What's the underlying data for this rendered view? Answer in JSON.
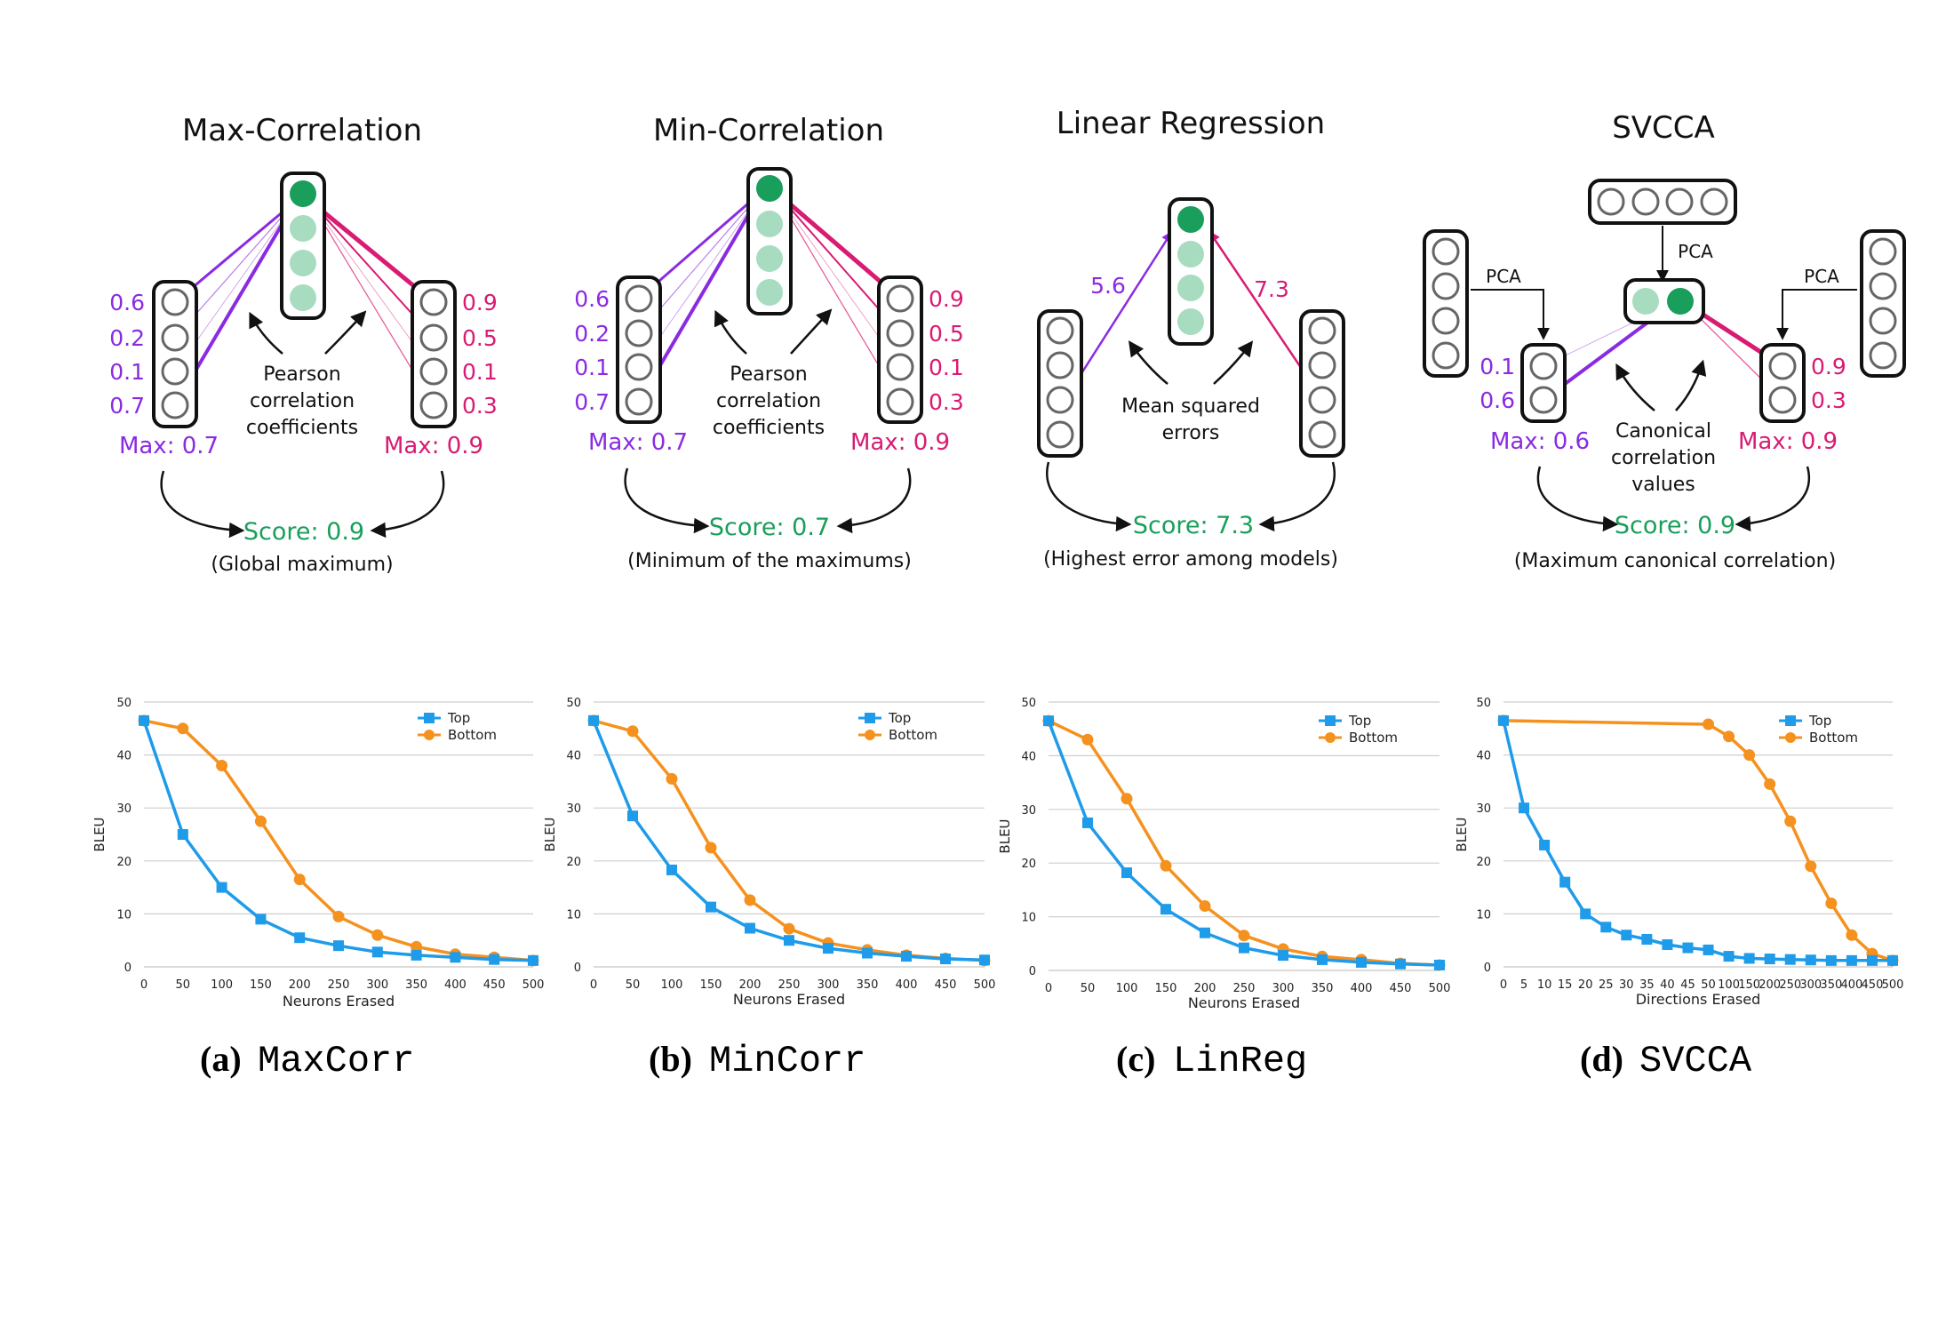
{
  "colors": {
    "purple": "#8a2be2",
    "pink": "#d81b73",
    "green": "#1a9e5b",
    "green_light": "#a8dcc0",
    "blue": "#1e9be9",
    "orange": "#f5911e",
    "grid": "#cfcfcf",
    "ink": "#111111"
  },
  "diagrams": {
    "maxcorr": {
      "title": "Max-Correlation",
      "left_values": [
        "0.6",
        "0.2",
        "0.1",
        "0.7"
      ],
      "right_values": [
        "0.9",
        "0.5",
        "0.1",
        "0.3"
      ],
      "middle_label": [
        "Pearson",
        "correlation",
        "coefficients"
      ],
      "left_max": "Max: 0.7",
      "right_max": "Max: 0.9",
      "score": "Score: 0.9",
      "note": "(Global maximum)"
    },
    "mincorr": {
      "title": "Min-Correlation",
      "left_values": [
        "0.6",
        "0.2",
        "0.1",
        "0.7"
      ],
      "right_values": [
        "0.9",
        "0.5",
        "0.1",
        "0.3"
      ],
      "middle_label": [
        "Pearson",
        "correlation",
        "coefficients"
      ],
      "left_max": "Max: 0.7",
      "right_max": "Max: 0.9",
      "score": "Score: 0.7",
      "note": "(Minimum of the maximums)"
    },
    "linreg": {
      "title": "Linear Regression",
      "left_error": "5.6",
      "right_error": "7.3",
      "middle_label": [
        "Mean squared",
        "errors"
      ],
      "score": "Score: 7.3",
      "note": "(Highest error among models)"
    },
    "svcca": {
      "title": "SVCCA",
      "pca_label": "PCA",
      "left_values": [
        "0.1",
        "0.6"
      ],
      "right_values": [
        "0.9",
        "0.3"
      ],
      "middle_label": [
        "Canonical",
        "correlation",
        "values"
      ],
      "left_max": "Max: 0.6",
      "right_max": "Max: 0.9",
      "score": "Score: 0.9",
      "note": "(Maximum canonical correlation)"
    }
  },
  "captions": [
    {
      "label": "(a)",
      "code": "MaxCorr"
    },
    {
      "label": "(b)",
      "code": "MinCorr"
    },
    {
      "label": "(c)",
      "code": "LinReg"
    },
    {
      "label": "(d)",
      "code": "SVCCA"
    }
  ],
  "chart_data": [
    {
      "type": "line",
      "xlabel": "Neurons Erased",
      "ylabel": "BLEU",
      "ylim": [
        0,
        50
      ],
      "yticks": [
        0,
        10,
        20,
        30,
        40,
        50
      ],
      "x": [
        "0",
        "50",
        "100",
        "150",
        "200",
        "250",
        "300",
        "350",
        "400",
        "450",
        "500"
      ],
      "grid": true,
      "legend_position": "top-right",
      "series": [
        {
          "name": "Top",
          "marker": "square",
          "values": [
            46.5,
            25,
            15,
            9,
            5.5,
            4,
            2.8,
            2.2,
            1.8,
            1.4,
            1.2
          ]
        },
        {
          "name": "Bottom",
          "marker": "circle",
          "values": [
            46.5,
            45,
            38,
            27.5,
            16.5,
            9.5,
            6,
            3.8,
            2.4,
            1.8,
            1.2
          ]
        }
      ]
    },
    {
      "type": "line",
      "xlabel": "Neurons Erased",
      "ylabel": "BLEU",
      "ylim": [
        0,
        50
      ],
      "yticks": [
        0,
        10,
        20,
        30,
        40,
        50
      ],
      "x": [
        "0",
        "50",
        "100",
        "150",
        "200",
        "250",
        "300",
        "350",
        "400",
        "450",
        "500"
      ],
      "grid": true,
      "legend_position": "top-right",
      "series": [
        {
          "name": "Top",
          "marker": "square",
          "values": [
            46.5,
            28.5,
            18.3,
            11.3,
            7.3,
            5,
            3.5,
            2.6,
            2,
            1.5,
            1.3
          ]
        },
        {
          "name": "Bottom",
          "marker": "circle",
          "values": [
            46.5,
            44.5,
            35.5,
            22.5,
            12.6,
            7.2,
            4.5,
            3.2,
            2.2,
            1.6,
            1.2
          ]
        }
      ]
    },
    {
      "type": "line",
      "xlabel": "Neurons Erased",
      "ylabel": "BLEU",
      "ylim": [
        0,
        50
      ],
      "yticks": [
        0,
        10,
        20,
        30,
        40,
        50
      ],
      "x": [
        "0",
        "50",
        "100",
        "150",
        "200",
        "250",
        "300",
        "350",
        "400",
        "450",
        "500"
      ],
      "grid": true,
      "legend_position": "top-right",
      "series": [
        {
          "name": "Top",
          "marker": "square",
          "values": [
            46.5,
            27.5,
            18.2,
            11.4,
            7,
            4.2,
            2.8,
            2,
            1.5,
            1.2,
            1
          ]
        },
        {
          "name": "Bottom",
          "marker": "circle",
          "values": [
            46.5,
            43,
            32,
            19.5,
            12,
            6.5,
            4,
            2.6,
            2,
            1.3,
            1
          ]
        }
      ]
    },
    {
      "type": "line",
      "xlabel": "Directions Erased",
      "ylabel": "BLEU",
      "ylim": [
        0,
        50
      ],
      "yticks": [
        0,
        10,
        20,
        30,
        40,
        50
      ],
      "x": [
        "0",
        "5",
        "10",
        "15",
        "20",
        "25",
        "30",
        "35",
        "40",
        "45",
        "50",
        "100",
        "150",
        "200",
        "250",
        "300",
        "350",
        "400",
        "450",
        "500"
      ],
      "grid": true,
      "legend_position": "top-right",
      "series": [
        {
          "name": "Top",
          "marker": "square",
          "values": [
            46.5,
            30,
            23,
            16,
            10,
            7.5,
            6,
            5.2,
            4.2,
            3.6,
            3.2,
            2,
            1.6,
            1.5,
            1.4,
            1.3,
            1.2,
            1.2,
            1.2,
            1.2
          ]
        },
        {
          "name": "Bottom",
          "marker": "circle",
          "values": [
            46.5,
            null,
            null,
            null,
            null,
            null,
            null,
            null,
            null,
            null,
            45.8,
            43.5,
            40,
            34.5,
            27.5,
            19,
            12,
            6,
            2.5,
            1.2
          ]
        }
      ]
    }
  ]
}
